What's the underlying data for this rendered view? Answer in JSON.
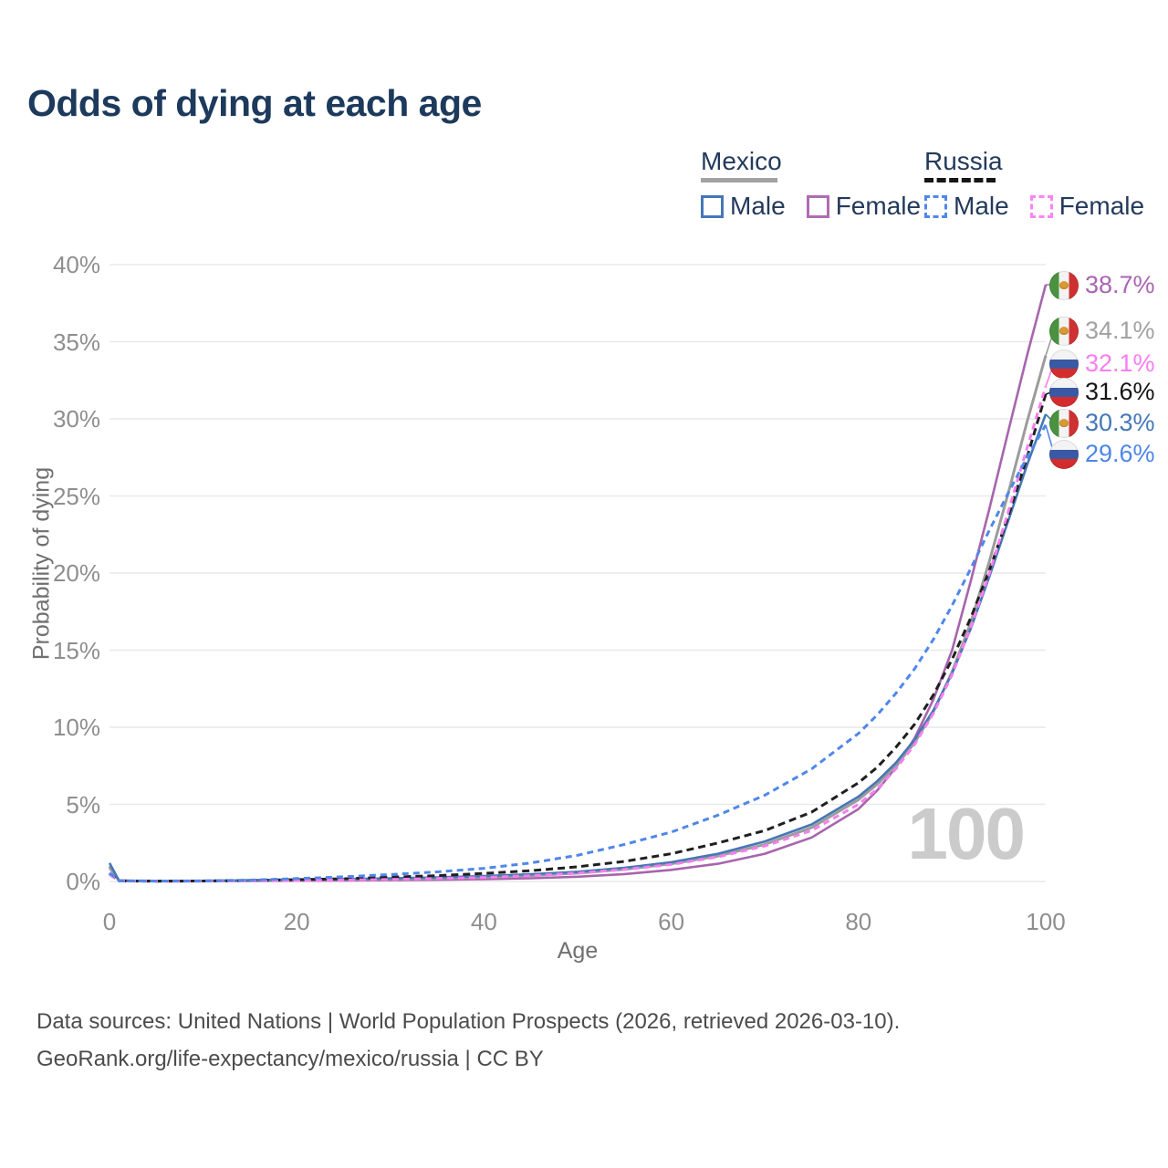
{
  "title": "Odds of dying at each age",
  "legend": {
    "groups": [
      {
        "country": "Mexico",
        "line_style": "solid",
        "underline_color": "#a2a2a2",
        "items": [
          {
            "label": "Male",
            "color": "#4577b6",
            "dashed": false
          },
          {
            "label": "Female",
            "color": "#ae6cb4",
            "dashed": false
          }
        ]
      },
      {
        "country": "Russia",
        "line_style": "dashed",
        "underline_color": "#161616",
        "items": [
          {
            "label": "Male",
            "color": "#4f87ea",
            "dashed": true
          },
          {
            "label": "Female",
            "color": "#f985f2",
            "dashed": true
          }
        ]
      }
    ]
  },
  "chart_data": {
    "type": "line",
    "title": "Odds of dying at each age",
    "xlabel": "Age",
    "ylabel": "Probability of dying",
    "xlim": [
      0,
      100
    ],
    "ylim": [
      0,
      40
    ],
    "grid": "horizontal",
    "legend_position": "top-right",
    "watermark": "100",
    "xticks": [
      {
        "value": 0,
        "label": "0"
      },
      {
        "value": 20,
        "label": "20"
      },
      {
        "value": 40,
        "label": "40"
      },
      {
        "value": 60,
        "label": "60"
      },
      {
        "value": 80,
        "label": "80"
      },
      {
        "value": 100,
        "label": "100"
      }
    ],
    "yticks": [
      {
        "value": 0,
        "label": "0%"
      },
      {
        "value": 5,
        "label": "5%"
      },
      {
        "value": 10,
        "label": "10%"
      },
      {
        "value": 15,
        "label": "15%"
      },
      {
        "value": 20,
        "label": "20%"
      },
      {
        "value": 25,
        "label": "25%"
      },
      {
        "value": 30,
        "label": "30%"
      },
      {
        "value": 35,
        "label": "35%"
      },
      {
        "value": 40,
        "label": "40%"
      }
    ],
    "x": [
      0,
      1,
      2,
      5,
      10,
      15,
      20,
      25,
      30,
      35,
      40,
      45,
      50,
      55,
      60,
      65,
      70,
      75,
      80,
      82,
      84,
      86,
      88,
      90,
      92,
      94,
      96,
      98,
      100
    ],
    "series": [
      {
        "name": "Mexico Female",
        "flag": "mexico",
        "color": "#a665ad",
        "label_color": "#a965b3",
        "dash": null,
        "width": 2.6,
        "end_label": "38.7%",
        "values": [
          0.9,
          0.05,
          0.03,
          0.02,
          0.02,
          0.03,
          0.05,
          0.06,
          0.08,
          0.11,
          0.15,
          0.21,
          0.31,
          0.48,
          0.75,
          1.15,
          1.8,
          2.85,
          4.7,
          5.9,
          7.4,
          9.3,
          11.8,
          15.0,
          19.5,
          24.2,
          29.2,
          34.1,
          38.7
        ]
      },
      {
        "name": "Mexico Both sexes",
        "flag": "mexico",
        "color": "#9c9c9c",
        "label_color": "#a2a2a2",
        "dash": null,
        "width": 3,
        "end_label": "34.1%",
        "values": [
          1.0,
          0.06,
          0.04,
          0.03,
          0.03,
          0.05,
          0.09,
          0.12,
          0.16,
          0.21,
          0.28,
          0.38,
          0.54,
          0.78,
          1.15,
          1.65,
          2.4,
          3.5,
          5.3,
          6.3,
          7.5,
          9.0,
          11.0,
          13.6,
          16.8,
          20.8,
          25.2,
          29.8,
          34.1
        ]
      },
      {
        "name": "Mexico Male",
        "flag": "mexico",
        "color": "#4577b6",
        "label_color": "#4577b6",
        "dash": null,
        "width": 2.6,
        "end_label": "30.3%",
        "values": [
          1.2,
          0.07,
          0.05,
          0.04,
          0.04,
          0.08,
          0.13,
          0.16,
          0.2,
          0.26,
          0.35,
          0.47,
          0.63,
          0.88,
          1.25,
          1.8,
          2.6,
          3.7,
          5.5,
          6.5,
          7.7,
          9.2,
          11.1,
          13.5,
          16.4,
          19.8,
          23.4,
          27.0,
          30.3
        ]
      },
      {
        "name": "Russia Both sexes",
        "flag": "russia",
        "color": "#1f1f1f",
        "label_color": "#141414",
        "dash": "8 5",
        "width": 3,
        "end_label": "31.6%",
        "values": [
          0.5,
          0.04,
          0.03,
          0.02,
          0.03,
          0.06,
          0.12,
          0.18,
          0.28,
          0.38,
          0.52,
          0.7,
          0.95,
          1.3,
          1.8,
          2.5,
          3.3,
          4.5,
          6.4,
          7.4,
          8.7,
          10.2,
          12.1,
          14.4,
          17.1,
          20.2,
          23.7,
          27.5,
          31.6
        ]
      },
      {
        "name": "Russia Female",
        "flag": "russia",
        "color": "#f97df0",
        "label_color": "#f97df0",
        "dash": "7 5",
        "width": 3,
        "end_label": "32.1%",
        "values": [
          0.45,
          0.04,
          0.03,
          0.02,
          0.02,
          0.04,
          0.06,
          0.09,
          0.13,
          0.19,
          0.26,
          0.37,
          0.54,
          0.78,
          1.1,
          1.6,
          2.3,
          3.3,
          5.0,
          6.0,
          7.3,
          8.9,
          10.9,
          13.4,
          16.5,
          20.0,
          24.0,
          28.1,
          32.1
        ]
      },
      {
        "name": "Russia Male",
        "flag": "russia",
        "color": "#4f87ea",
        "label_color": "#4c86e8",
        "dash": "7 5",
        "width": 3,
        "end_label": "29.6%",
        "values": [
          0.55,
          0.05,
          0.04,
          0.03,
          0.04,
          0.09,
          0.19,
          0.3,
          0.45,
          0.62,
          0.85,
          1.2,
          1.7,
          2.4,
          3.2,
          4.3,
          5.6,
          7.3,
          9.6,
          10.8,
          12.2,
          13.8,
          15.7,
          17.9,
          20.3,
          22.8,
          25.2,
          27.5,
          29.6
        ]
      }
    ]
  },
  "footer": {
    "line1": "Data sources: United Nations | World Population Prospects (2026, retrieved 2026-03-10).",
    "line2": "GeoRank.org/life-expectancy/mexico/russia | CC BY"
  }
}
